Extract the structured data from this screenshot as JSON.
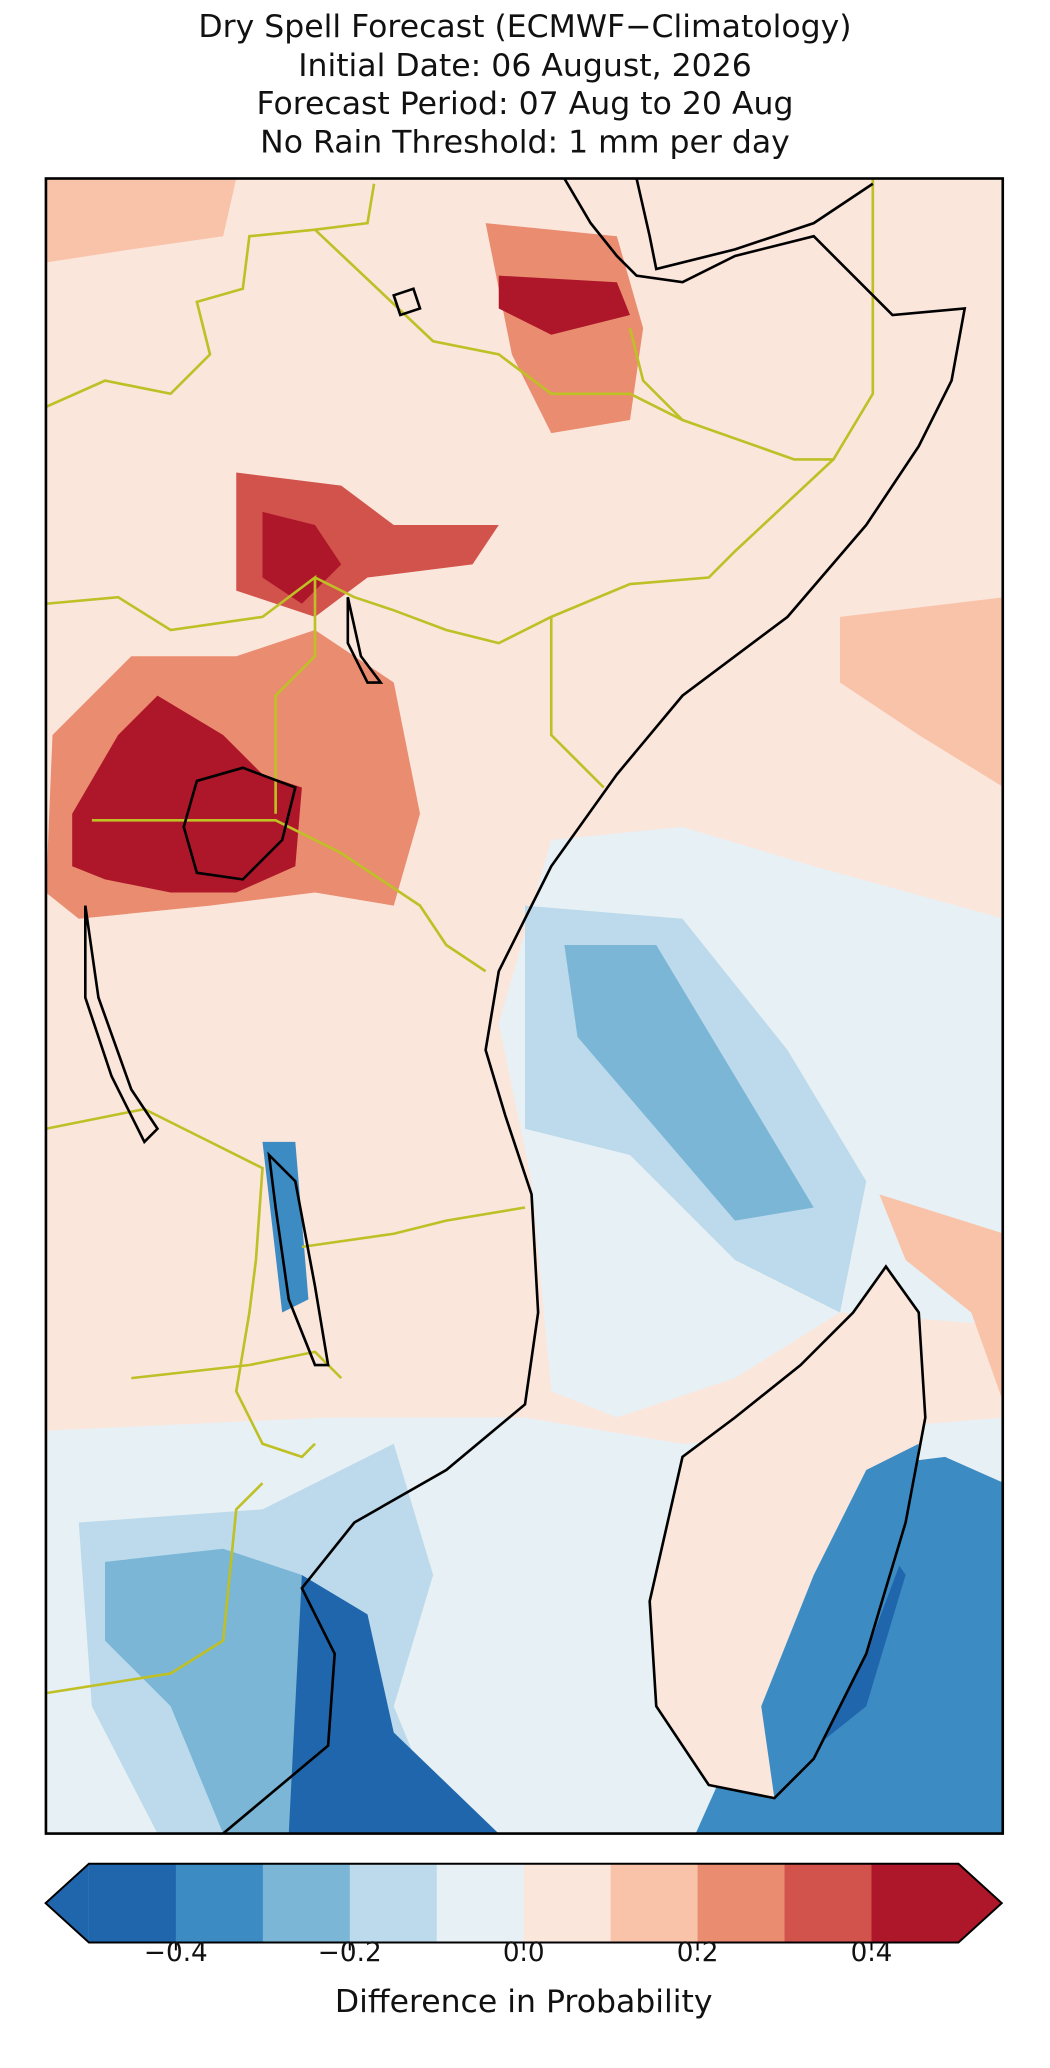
{
  "title": [
    "Dry Spell Forecast (ECMWF−Climatology)",
    "Initial Date: 06 August, 2026",
    "Forecast Period: 07 Aug to 20 Aug",
    "No Rain Threshold: 1 mm per day"
  ],
  "colorbar": {
    "label": "Difference in Probability",
    "bounds": [
      -0.5,
      -0.4,
      -0.3,
      -0.2,
      -0.1,
      0,
      0.1,
      0.2,
      0.3,
      0.4,
      0.5
    ],
    "colors": [
      "#2066ac",
      "#3c8bc3",
      "#7bb6d6",
      "#bcdaeb",
      "#e7f0f4",
      "#fbe6dc",
      "#f9c3aa",
      "#ea8c6f",
      "#d1534b",
      "#ae1729"
    ],
    "extend": "both",
    "ticks": [
      {
        "value": -0.4,
        "label": "−0.4"
      },
      {
        "value": -0.2,
        "label": "−0.2"
      },
      {
        "value": 0,
        "label": "0.0"
      },
      0.2,
      0.4
    ]
  }
}
